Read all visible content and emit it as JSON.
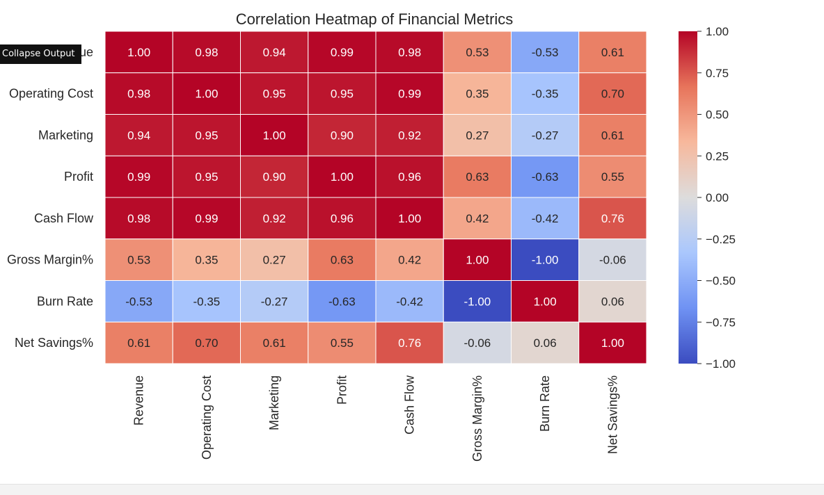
{
  "tooltip": {
    "label": "Collapse Output"
  },
  "chart_data": {
    "type": "heatmap",
    "title": "Correlation Heatmap of Financial Metrics",
    "xlabel": "",
    "ylabel": "",
    "colormap": "coolwarm",
    "colormap_stops": [
      "#3b4cc0",
      "#6f92f3",
      "#aac7fd",
      "#dddcdc",
      "#f7b89c",
      "#e7745b",
      "#b40426"
    ],
    "vmin": -1.0,
    "vmax": 1.0,
    "annotation_format": "0.00",
    "rows": [
      "Revenue",
      "Operating Cost",
      "Marketing",
      "Profit",
      "Cash Flow",
      "Gross Margin%",
      "Burn Rate",
      "Net Savings%"
    ],
    "columns": [
      "Revenue",
      "Operating Cost",
      "Marketing",
      "Profit",
      "Cash Flow",
      "Gross Margin%",
      "Burn Rate",
      "Net Savings%"
    ],
    "values": [
      [
        1.0,
        0.98,
        0.94,
        0.99,
        0.98,
        0.53,
        -0.53,
        0.61
      ],
      [
        0.98,
        1.0,
        0.95,
        0.95,
        0.99,
        0.35,
        -0.35,
        0.7
      ],
      [
        0.94,
        0.95,
        1.0,
        0.9,
        0.92,
        0.27,
        -0.27,
        0.61
      ],
      [
        0.99,
        0.95,
        0.9,
        1.0,
        0.96,
        0.63,
        -0.63,
        0.55
      ],
      [
        0.98,
        0.99,
        0.92,
        0.96,
        1.0,
        0.42,
        -0.42,
        0.76
      ],
      [
        0.53,
        0.35,
        0.27,
        0.63,
        0.42,
        1.0,
        -1.0,
        -0.06
      ],
      [
        -0.53,
        -0.35,
        -0.27,
        -0.63,
        -0.42,
        -1.0,
        1.0,
        0.06
      ],
      [
        0.61,
        0.7,
        0.61,
        0.55,
        0.76,
        -0.06,
        0.06,
        1.0
      ]
    ],
    "colorbar": {
      "ticks": [
        1.0,
        0.75,
        0.5,
        0.25,
        0.0,
        -0.25,
        -0.5,
        -0.75,
        -1.0
      ],
      "tick_labels": [
        "1.00",
        "0.75",
        "0.50",
        "0.25",
        "0.00",
        "−0.25",
        "−0.50",
        "−0.75",
        "−1.00"
      ]
    }
  }
}
